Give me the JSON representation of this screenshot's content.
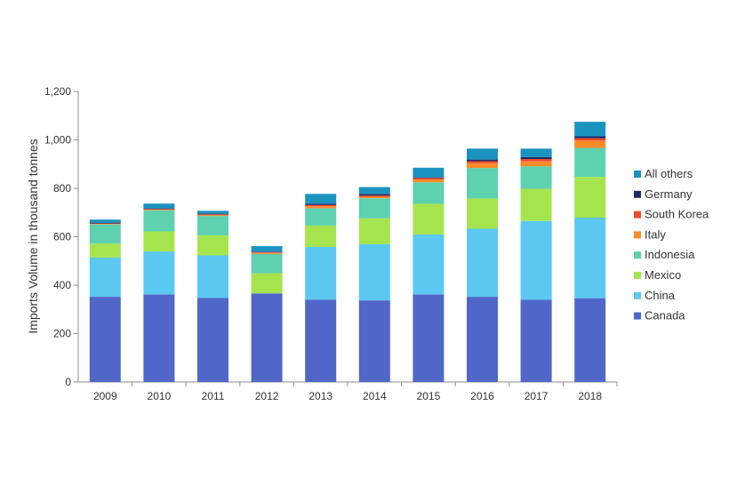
{
  "chart_data": {
    "type": "bar",
    "stacked": true,
    "title": "",
    "xlabel": "",
    "ylabel": "Imports Volume in  thousand tonnes",
    "ylim": [
      0,
      1200
    ],
    "yticks": [
      0,
      200,
      400,
      600,
      800,
      1000,
      1200
    ],
    "ytick_labels": [
      "0",
      "200",
      "400",
      "600",
      "800",
      "1,000",
      "1,200"
    ],
    "grid": false,
    "legend_position": "right",
    "categories": [
      "2009",
      "2010",
      "2011",
      "2012",
      "2013",
      "2014",
      "2015",
      "2016",
      "2017",
      "2018"
    ],
    "series": [
      {
        "name": "Canada",
        "color": "#5066C9",
        "values": [
          352,
          362,
          347,
          366,
          340,
          337,
          362,
          352,
          340,
          346
        ]
      },
      {
        "name": "China",
        "color": "#5BC8F2",
        "values": [
          162,
          177,
          176,
          0,
          218,
          232,
          247,
          281,
          325,
          333
        ]
      },
      {
        "name": "Mexico",
        "color": "#A6E44E",
        "values": [
          58,
          83,
          83,
          83,
          88,
          107,
          127,
          125,
          133,
          168
        ]
      },
      {
        "name": "Indonesia",
        "color": "#5DD1B0",
        "values": [
          79,
          87,
          80,
          80,
          72,
          83,
          89,
          126,
          93,
          120
        ]
      },
      {
        "name": "Italy",
        "color": "#FB8C28",
        "values": [
          2,
          3,
          4,
          4,
          8,
          6,
          12,
          20,
          20,
          30
        ]
      },
      {
        "name": "South Korea",
        "color": "#F0492C",
        "values": [
          2,
          2,
          2,
          3,
          5,
          5,
          5,
          8,
          10,
          10
        ]
      },
      {
        "name": "Germany",
        "color": "#1F2A66",
        "values": [
          2,
          3,
          3,
          2,
          6,
          7,
          3,
          7,
          8,
          8
        ]
      },
      {
        "name": "All others",
        "color": "#1B93C0",
        "values": [
          14,
          20,
          12,
          23,
          40,
          28,
          40,
          45,
          35,
          60
        ]
      }
    ]
  }
}
